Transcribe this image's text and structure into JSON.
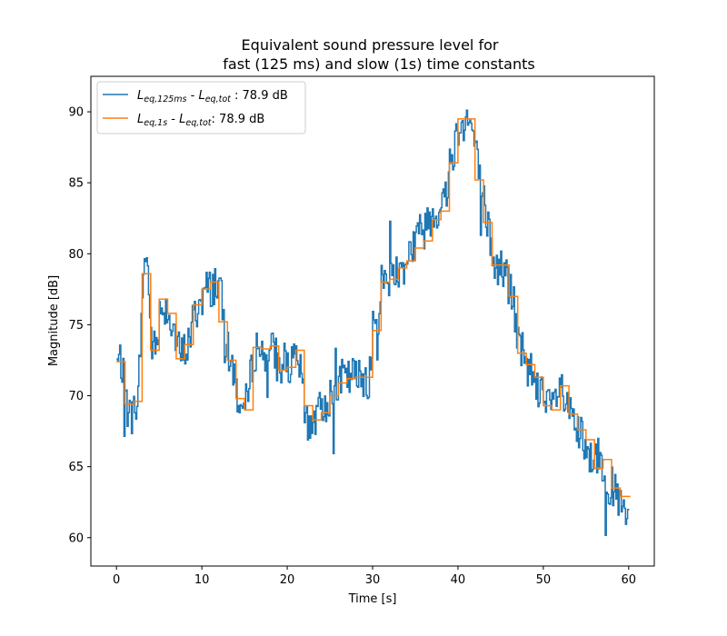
{
  "chart_data": {
    "type": "line",
    "title": [
      "Equivalent sound pressure level for",
      "fast (125 ms) and slow (1s) time constants"
    ],
    "xlabel": "Time [s]",
    "ylabel": "Magnitude [dB]",
    "xlim": [
      -3,
      63
    ],
    "ylim": [
      58,
      92.5
    ],
    "xticks": [
      0,
      10,
      20,
      30,
      40,
      50,
      60
    ],
    "yticks": [
      60,
      65,
      70,
      75,
      80,
      85,
      90
    ],
    "grid": false,
    "legend_position": "top-left",
    "series": [
      {
        "name": "L_eq,125ms - L_eq,tot : 78.9 dB",
        "legend": {
          "main": "L",
          "sub": "eq,125ms",
          "mid": " - ",
          "main2": "L",
          "sub2": "eq,tot",
          "tail": " : 78.9 dB"
        },
        "color": "#1f77b4",
        "style": "step-noisy",
        "x": [
          0,
          0.5,
          1,
          1.5,
          2,
          2.5,
          3,
          3.5,
          4,
          4.5,
          5,
          5.5,
          6,
          6.5,
          7,
          7.5,
          8,
          8.5,
          9,
          9.5,
          10,
          10.5,
          11,
          11.5,
          12,
          12.5,
          13,
          13.5,
          14,
          14.5,
          15,
          15.5,
          16,
          16.5,
          17,
          17.5,
          18,
          18.5,
          19,
          19.5,
          20,
          20.5,
          21,
          21.5,
          22,
          22.5,
          23,
          23.5,
          24,
          24.5,
          25,
          25.5,
          26,
          26.5,
          27,
          27.5,
          28,
          28.5,
          29,
          29.5,
          30,
          30.5,
          31,
          31.5,
          32,
          32.5,
          33,
          33.5,
          34,
          34.5,
          35,
          35.5,
          36,
          36.5,
          37,
          37.5,
          38,
          38.5,
          39,
          39.5,
          40,
          40.5,
          41,
          41.5,
          42,
          42.5,
          43,
          43.5,
          44,
          44.5,
          45,
          45.5,
          46,
          46.5,
          47,
          47.5,
          48,
          48.5,
          49,
          49.5,
          50,
          50.5,
          51,
          51.5,
          52,
          52.5,
          53,
          53.5,
          54,
          54.5,
          55,
          55.5,
          56,
          56.5,
          57,
          57.5,
          58,
          58.5,
          59,
          59.5,
          60
        ],
        "y": [
          72.3,
          72.5,
          69.8,
          68.5,
          69.0,
          69.8,
          77.5,
          80.5,
          74.0,
          73.0,
          75.8,
          76.5,
          76.0,
          75.2,
          73.5,
          72.8,
          73.2,
          74.0,
          75.5,
          76.2,
          77.0,
          77.5,
          77.5,
          78.0,
          77.8,
          75.5,
          73.0,
          72.2,
          70.5,
          69.2,
          69.0,
          70.5,
          73.0,
          73.5,
          73.0,
          72.8,
          73.2,
          73.0,
          72.0,
          71.5,
          72.2,
          72.0,
          72.5,
          71.8,
          69.0,
          68.0,
          68.5,
          68.2,
          69.5,
          69.5,
          70.0,
          70.5,
          71.0,
          71.2,
          71.0,
          71.5,
          71.2,
          71.3,
          71.5,
          71.2,
          74.5,
          75.0,
          78.0,
          78.2,
          78.5,
          79.0,
          78.5,
          79.2,
          79.8,
          80.5,
          81.0,
          81.5,
          82.0,
          82.5,
          83.0,
          83.0,
          83.5,
          84.0,
          86.5,
          87.5,
          89.0,
          89.8,
          89.5,
          89.0,
          87.5,
          85.0,
          83.5,
          82.0,
          79.5,
          79.0,
          79.0,
          78.8,
          77.5,
          76.5,
          73.5,
          72.5,
          72.0,
          71.8,
          71.5,
          70.5,
          69.5,
          69.0,
          69.2,
          70.0,
          70.5,
          69.5,
          68.5,
          68.0,
          67.5,
          66.8,
          65.5,
          65.8,
          66.0,
          65.5,
          65.0,
          64.0,
          63.5,
          62.8,
          62.5,
          61.0,
          61.5
        ]
      },
      {
        "name": "L_eq,1s - L_eq,tot: 78.9 dB",
        "legend": {
          "main": "L",
          "sub": "eq,1s",
          "mid": " - ",
          "main2": "L",
          "sub2": "eq,tot",
          "tail": ": 78.9 dB"
        },
        "color": "#ff7f0e",
        "style": "step",
        "x": [
          0,
          1,
          2,
          3,
          4,
          5,
          6,
          7,
          8,
          9,
          10,
          11,
          12,
          13,
          14,
          15,
          16,
          17,
          18,
          19,
          20,
          21,
          22,
          23,
          24,
          25,
          26,
          27,
          28,
          29,
          30,
          31,
          32,
          33,
          34,
          35,
          36,
          37,
          38,
          39,
          40,
          41,
          42,
          43,
          44,
          45,
          46,
          47,
          48,
          49,
          50,
          51,
          52,
          53,
          54,
          55,
          56,
          57,
          58,
          59,
          60
        ],
        "y": [
          72.4,
          69.4,
          69.6,
          78.6,
          73.2,
          76.8,
          75.8,
          72.6,
          73.6,
          76.4,
          77.5,
          78.0,
          75.2,
          72.5,
          69.8,
          69.0,
          73.4,
          73.3,
          73.5,
          71.8,
          72.0,
          73.2,
          69.3,
          68.3,
          68.8,
          70.0,
          70.9,
          71.2,
          71.3,
          71.3,
          74.6,
          78.0,
          78.2,
          79.0,
          79.5,
          80.4,
          80.9,
          82.4,
          83.0,
          86.4,
          89.5,
          89.5,
          85.2,
          82.2,
          79.2,
          79.2,
          77.0,
          73.0,
          72.2,
          71.3,
          69.3,
          69.0,
          70.7,
          68.7,
          67.6,
          66.9,
          64.9,
          65.5,
          63.5,
          62.9,
          62.9
        ]
      }
    ]
  }
}
